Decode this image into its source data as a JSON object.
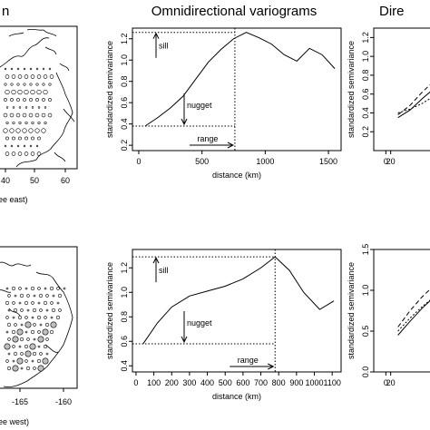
{
  "colors": {
    "ink": "#000000",
    "bg": "#ffffff",
    "point_fill": "#bfbfbf"
  },
  "titles": {
    "left": "n",
    "middle": "Omnidirectional variograms",
    "right": "Dire"
  },
  "left_panels": {
    "top": {
      "xlabel": "ee east)",
      "ticks": [
        "40",
        "50",
        "60"
      ]
    },
    "bottom": {
      "xlabel": "ee west)",
      "ticks": [
        "-165",
        "-160"
      ]
    }
  },
  "chart_data": [
    {
      "type": "line",
      "panel": "omnidirectional-top",
      "xlabel": "distance (km)",
      "ylabel": "standardized semivariance",
      "xlim": [
        -50,
        1600
      ],
      "ylim": [
        0.15,
        1.3
      ],
      "xticks": [
        "0",
        "500",
        "1000",
        "1500"
      ],
      "yticks": [
        "0.2",
        "0.4",
        "0.6",
        "0.8",
        "1.0",
        "1.2"
      ],
      "x": [
        50,
        150,
        250,
        350,
        450,
        550,
        650,
        750,
        850,
        950,
        1050,
        1150,
        1250,
        1350,
        1450,
        1550
      ],
      "y": [
        0.38,
        0.46,
        0.55,
        0.66,
        0.82,
        0.98,
        1.1,
        1.2,
        1.26,
        1.21,
        1.15,
        1.05,
        0.99,
        1.11,
        1.05,
        0.92
      ],
      "annotations": {
        "sill": {
          "label": "sill",
          "value": 1.26
        },
        "nugget": {
          "label": "nugget",
          "value": 0.38
        },
        "range": {
          "label": "range",
          "value": 760
        }
      },
      "grid": false
    },
    {
      "type": "line",
      "panel": "omnidirectional-bottom",
      "xlabel": "distance (km)",
      "ylabel": "standardized semivariance",
      "xlim": [
        -20,
        1150
      ],
      "ylim": [
        0.35,
        1.35
      ],
      "xticks": [
        "0",
        "100",
        "200",
        "300",
        "400",
        "500",
        "600",
        "700",
        "800",
        "900",
        "1000",
        "1100"
      ],
      "yticks": [
        "0.4",
        "0.6",
        "0.8",
        "1.0",
        "1.2"
      ],
      "x": [
        40,
        120,
        200,
        300,
        400,
        500,
        600,
        700,
        780,
        860,
        940,
        1030,
        1110
      ],
      "y": [
        0.58,
        0.75,
        0.88,
        0.97,
        1.01,
        1.05,
        1.11,
        1.2,
        1.29,
        1.18,
        1.0,
        0.86,
        0.93
      ],
      "annotations": {
        "sill": {
          "label": "sill",
          "value": 1.29
        },
        "nugget": {
          "label": "nugget",
          "value": 0.58
        },
        "range": {
          "label": "range",
          "value": 780
        }
      },
      "grid": false
    },
    {
      "type": "line",
      "panel": "directional-top",
      "xlabel": "",
      "ylabel": "standardized semivariance",
      "xlim": [
        -50,
        250
      ],
      "ylim": [
        0,
        1.3
      ],
      "xticks": [
        "0",
        "20"
      ],
      "yticks": [
        "0.2",
        "0.4",
        "0.6",
        "0.8",
        "1.0",
        "1.2"
      ],
      "x": [
        50,
        100,
        150,
        200,
        250
      ],
      "series": [
        {
          "values": [
            0.35,
            0.43,
            0.55,
            0.66,
            0.76
          ]
        },
        {
          "values": [
            0.38,
            0.48,
            0.62,
            0.74,
            0.86
          ]
        },
        {
          "values": [
            0.4,
            0.44,
            0.5,
            0.58,
            0.64
          ]
        }
      ],
      "grid": false
    },
    {
      "type": "line",
      "panel": "directional-bottom",
      "xlabel": "",
      "ylabel": "standardized semivariance",
      "xlim": [
        -50,
        250
      ],
      "ylim": [
        0,
        1.5
      ],
      "xticks": [
        "0",
        "20"
      ],
      "yticks": [
        "0.0",
        "0.5",
        "1.0",
        "1.5"
      ],
      "x": [
        50,
        100,
        150,
        200,
        250
      ],
      "series": [
        {
          "values": [
            0.45,
            0.62,
            0.78,
            0.92,
            1.02
          ]
        },
        {
          "values": [
            0.55,
            0.75,
            0.92,
            1.06,
            1.16
          ]
        },
        {
          "values": [
            0.5,
            0.66,
            0.8,
            0.92,
            1.0
          ]
        }
      ],
      "grid": false
    }
  ]
}
